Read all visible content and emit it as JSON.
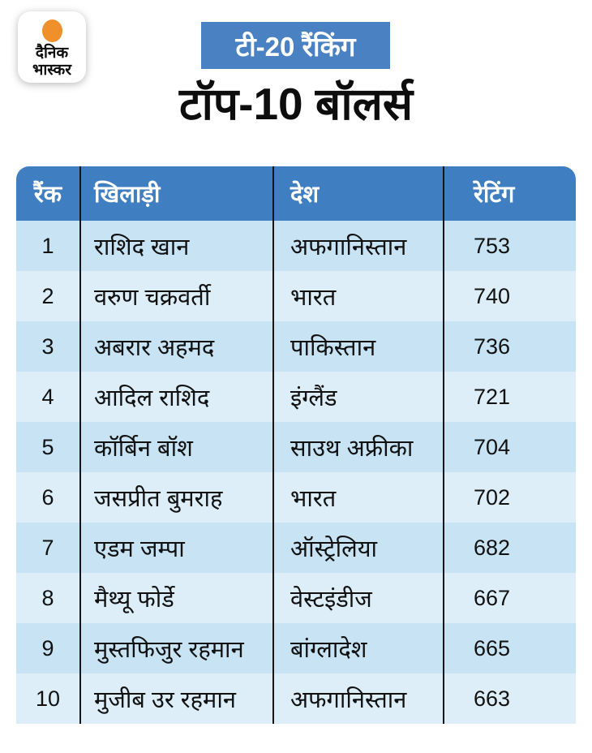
{
  "brand": {
    "logo_line1": "दैनिक",
    "logo_line2": "भास्कर",
    "logo_dot_color": "#f0902a"
  },
  "header": {
    "badge_label": "टी-20 रैंकिंग",
    "badge_bg": "#4a81c2",
    "title": "टॉप-10 बॉलर्स"
  },
  "table": {
    "header_bg": "#3f7ec0",
    "row_odd_bg": "#c8e3f4",
    "row_even_bg": "#ddeef8",
    "separator_color": "#161616",
    "columns": [
      "रैंक",
      "खिलाड़ी",
      "देश",
      "रेटिंग"
    ]
  },
  "chart_data": {
    "type": "table",
    "title": "टॉप-10 बॉलर्स",
    "subtitle": "टी-20 रैंकिंग",
    "columns": [
      "रैंक",
      "खिलाड़ी",
      "देश",
      "रेटिंग"
    ],
    "rows": [
      {
        "rank": "1",
        "player": "राशिद खान",
        "country": "अफगानिस्तान",
        "rating": "753"
      },
      {
        "rank": "2",
        "player": "वरुण चक्रवर्ती",
        "country": "भारत",
        "rating": "740"
      },
      {
        "rank": "3",
        "player": "अबरार अहमद",
        "country": "पाकिस्तान",
        "rating": "736"
      },
      {
        "rank": "4",
        "player": "आदिल राशिद",
        "country": "इंग्लैंड",
        "rating": "721"
      },
      {
        "rank": "5",
        "player": "कॉर्बिन बॉश",
        "country": "साउथ अफ्रीका",
        "rating": "704"
      },
      {
        "rank": "6",
        "player": "जसप्रीत बुमराह",
        "country": "भारत",
        "rating": "702"
      },
      {
        "rank": "7",
        "player": "एडम जम्पा",
        "country": "ऑस्ट्रेलिया",
        "rating": "682"
      },
      {
        "rank": "8",
        "player": "मैथ्यू फोर्डे",
        "country": "वेस्टइंडीज",
        "rating": "667"
      },
      {
        "rank": "9",
        "player": "मुस्तफिजुर रहमान",
        "country": "बांग्लादेश",
        "rating": "665"
      },
      {
        "rank": "10",
        "player": "मुजीब उर रहमान",
        "country": "अफगानिस्तान",
        "rating": "663"
      }
    ]
  }
}
